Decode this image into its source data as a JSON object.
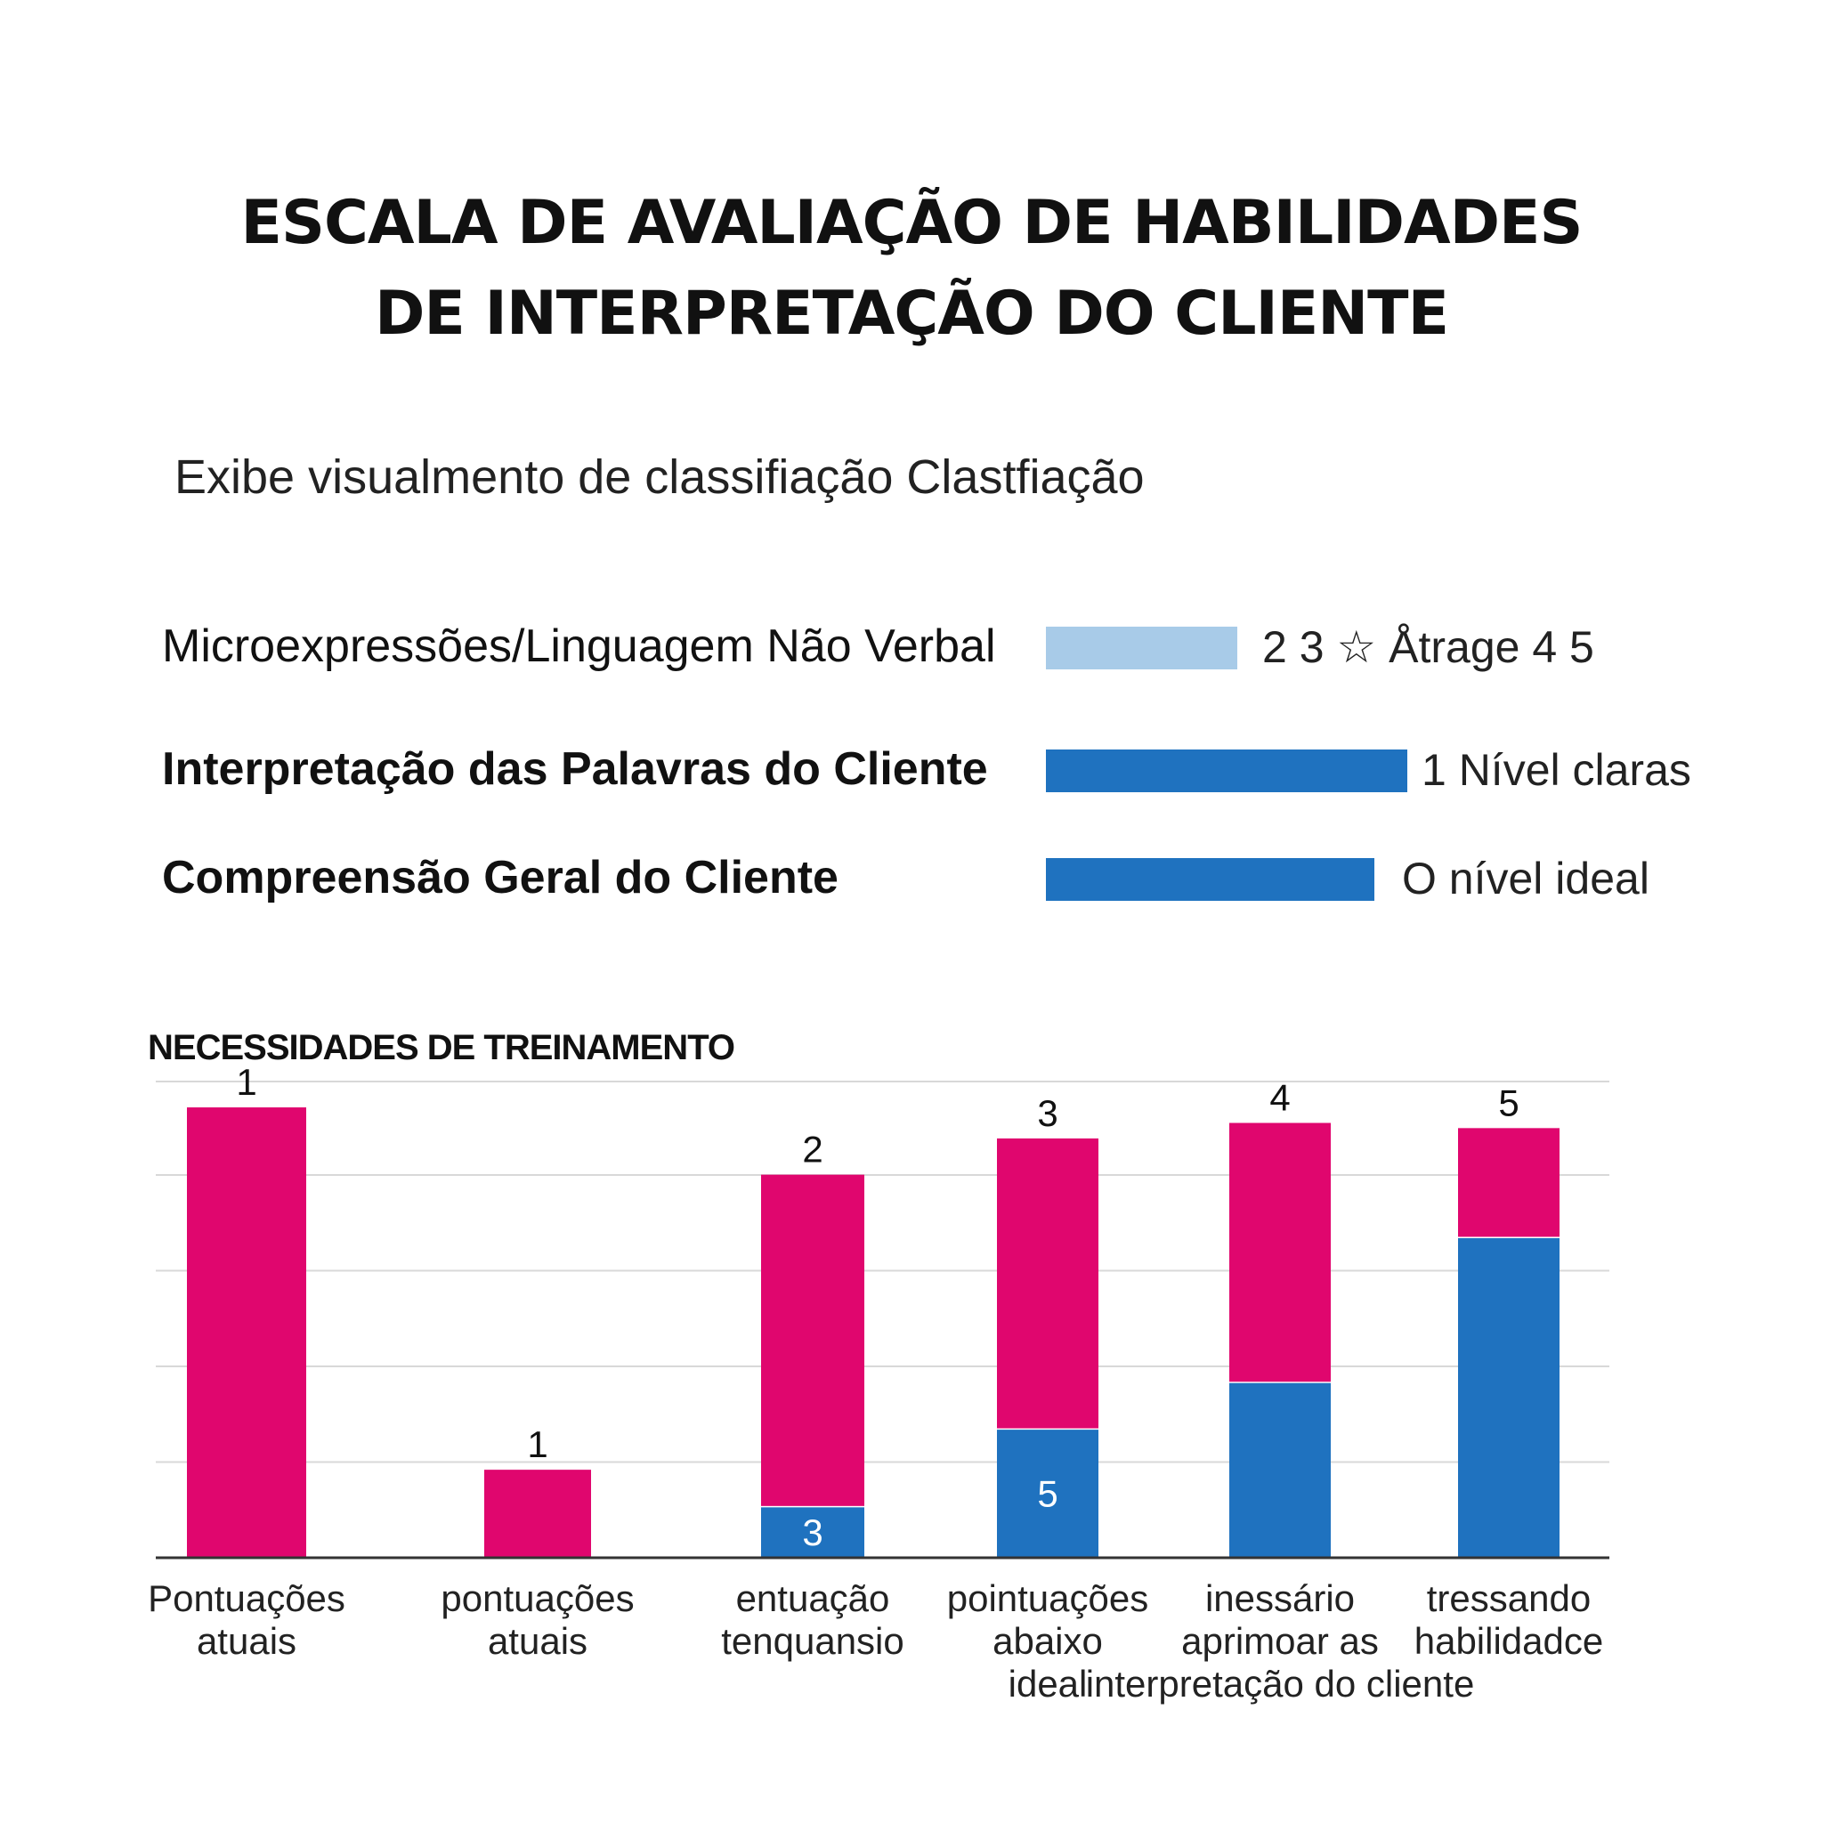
{
  "title_lines": [
    "ESCALA DE AVALIAÇÃO DE HABILIDADES",
    "DE INTERPRETAÇÃO DO CLIENTE"
  ],
  "subtitle": "Exibe visualmento de classifiação Clastfiação",
  "rating_rows": [
    {
      "label": "Microexpressões/Linguagem Não Verbal",
      "value_text": "2 3 ☆ Åtrage 4 5",
      "level": 0.35,
      "color": "#a8cbe8",
      "bold": false
    },
    {
      "label": "Interpretação das Palavras do Cliente",
      "value_text": "1 Nível claras",
      "level": 0.66,
      "color": "#1f72bf",
      "bold": true
    },
    {
      "label": "Compreensão Geral do Cliente",
      "value_text": "O nível ideal",
      "level": 0.6,
      "color": "#1f72bf",
      "bold": true
    }
  ],
  "training_title": "NECESSIDADES DE TREINAMENTO",
  "colors": {
    "pink": "#e0066e",
    "blue": "#1f72bf",
    "light_blue": "#a8cbe8",
    "grid": "#d8d8d8",
    "axis": "#333333"
  },
  "chart_data": {
    "type": "bar",
    "stacked": true,
    "ylim": [
      0,
      4.6
    ],
    "grid": true,
    "categories": [
      [
        "Pontuações",
        "atuais"
      ],
      [
        "pontuações",
        "atuais"
      ],
      [
        "entuação",
        "tenquansio"
      ],
      [
        "pointuações",
        "abaixo",
        "ideal"
      ],
      [
        "inessário",
        "aprimoar as",
        "interpretação do cliente"
      ],
      [
        "tressando",
        "habilidadce",
        ""
      ]
    ],
    "series": [
      {
        "values": [
          0,
          0,
          0.5,
          1.25,
          1.7,
          3.1
        ]
      },
      {
        "values": [
          4.35,
          0.85,
          3.2,
          2.8,
          2.5,
          1.05
        ]
      }
    ],
    "top_labels": [
      "1",
      "1",
      "2",
      "3",
      "4",
      "5"
    ],
    "inner_labels": [
      "",
      "",
      "3",
      "5",
      "",
      ""
    ]
  }
}
